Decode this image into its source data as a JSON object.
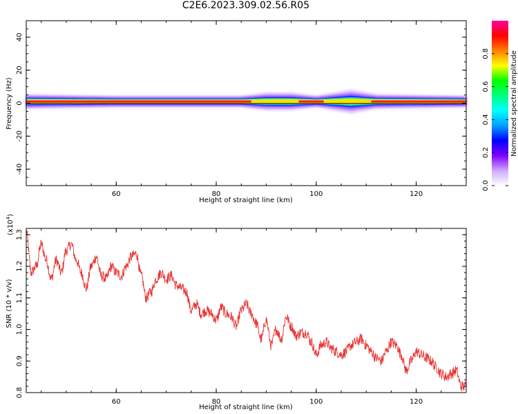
{
  "figure_title": "C2E6.2023.309.02.56.R05",
  "colors": {
    "snr_line": "#e83030",
    "spectrogram_band_core": "#ff1a1a",
    "spectrogram_halo": "#a060ff",
    "colormap": [
      "#ffffff",
      "#d0a8ff",
      "#8000ff",
      "#0000ff",
      "#00a0ff",
      "#00ffff",
      "#00ff80",
      "#00ff00",
      "#ffff00",
      "#ff8000",
      "#ff0000",
      "#ff00a0"
    ]
  },
  "chart_data": [
    {
      "type": "heatmap",
      "title": "",
      "xlabel": "Height of straight line (km)",
      "ylabel": "Frequency (Hz)",
      "xlim": [
        42,
        130
      ],
      "ylim": [
        -50,
        50
      ],
      "x_ticks": [
        60,
        80,
        100,
        120
      ],
      "y_ticks": [
        40,
        20,
        0,
        -20,
        -40
      ],
      "colorbar": {
        "label": "Normalized spectral amplitude",
        "range": [
          0.0,
          1.0
        ],
        "ticks": [
          "0.0",
          "0.2",
          "0.4",
          "0.6",
          "0.8"
        ]
      },
      "band": {
        "center_frequency_hz": 1,
        "description_points": [
          {
            "x": 42,
            "peak_amplitude": 1.0,
            "halo_halfwidth_hz": 4
          },
          {
            "x": 60,
            "peak_amplitude": 1.0,
            "halo_halfwidth_hz": 3
          },
          {
            "x": 85,
            "peak_amplitude": 1.0,
            "halo_halfwidth_hz": 3
          },
          {
            "x": 90,
            "peak_amplitude": 0.7,
            "halo_halfwidth_hz": 5
          },
          {
            "x": 95,
            "peak_amplitude": 0.8,
            "halo_halfwidth_hz": 5
          },
          {
            "x": 100,
            "peak_amplitude": 1.0,
            "halo_halfwidth_hz": 3
          },
          {
            "x": 107,
            "peak_amplitude": 0.45,
            "halo_halfwidth_hz": 7
          },
          {
            "x": 112,
            "peak_amplitude": 1.0,
            "halo_halfwidth_hz": 4
          },
          {
            "x": 130,
            "peak_amplitude": 1.0,
            "halo_halfwidth_hz": 3
          }
        ]
      }
    },
    {
      "type": "line",
      "title": "",
      "xlabel": "Height of straight line (km)",
      "ylabel": "SNR (10 * v/v)",
      "y_multiplier": "(x10",
      "y_multiplier_exp": "4",
      "y_multiplier_close": ")",
      "xlim": [
        42,
        130
      ],
      "ylim": [
        0.8,
        1.32
      ],
      "x_ticks": [
        60,
        80,
        100,
        120
      ],
      "y_ticks": [
        0.8,
        0.9,
        1.0,
        1.1,
        1.2,
        1.3
      ],
      "y_tick_labels": [
        "0.8",
        "0.9",
        "1.0",
        "1.1",
        "1.2",
        "1.3"
      ],
      "series": [
        {
          "values_x": [
            42,
            43,
            44,
            45,
            46,
            47,
            48,
            49,
            50,
            51,
            52,
            53,
            54,
            55,
            56,
            57,
            58,
            59,
            60,
            61,
            62,
            63,
            64,
            65,
            66,
            67,
            68,
            69,
            70,
            71,
            72,
            73,
            74,
            75,
            76,
            77,
            78,
            79,
            80,
            81,
            82,
            83,
            84,
            85,
            86,
            87,
            88,
            89,
            90,
            91,
            92,
            93,
            94,
            95,
            96,
            97,
            98,
            99,
            100,
            101,
            102,
            103,
            104,
            105,
            106,
            107,
            108,
            109,
            110,
            111,
            112,
            113,
            114,
            115,
            116,
            117,
            118,
            119,
            120,
            121,
            122,
            123,
            124,
            125,
            126,
            127,
            128,
            129,
            130
          ],
          "values_y": [
            1.31,
            1.18,
            1.2,
            1.27,
            1.22,
            1.16,
            1.22,
            1.18,
            1.25,
            1.27,
            1.22,
            1.18,
            1.13,
            1.2,
            1.23,
            1.17,
            1.16,
            1.2,
            1.18,
            1.17,
            1.2,
            1.23,
            1.24,
            1.17,
            1.1,
            1.12,
            1.16,
            1.18,
            1.16,
            1.17,
            1.14,
            1.13,
            1.12,
            1.06,
            1.08,
            1.05,
            1.06,
            1.05,
            1.03,
            1.07,
            1.05,
            1.04,
            1.01,
            1.06,
            1.08,
            1.05,
            1.02,
            0.97,
            1.03,
            0.95,
            1.0,
            0.97,
            1.04,
            1.01,
            0.98,
            0.99,
            0.99,
            0.96,
            0.92,
            0.95,
            0.96,
            0.94,
            0.93,
            0.92,
            0.93,
            0.95,
            0.96,
            0.97,
            0.95,
            0.93,
            0.91,
            0.9,
            0.93,
            0.96,
            0.95,
            0.92,
            0.87,
            0.9,
            0.93,
            0.92,
            0.91,
            0.9,
            0.88,
            0.86,
            0.85,
            0.86,
            0.87,
            0.82,
            0.82
          ]
        }
      ]
    }
  ]
}
